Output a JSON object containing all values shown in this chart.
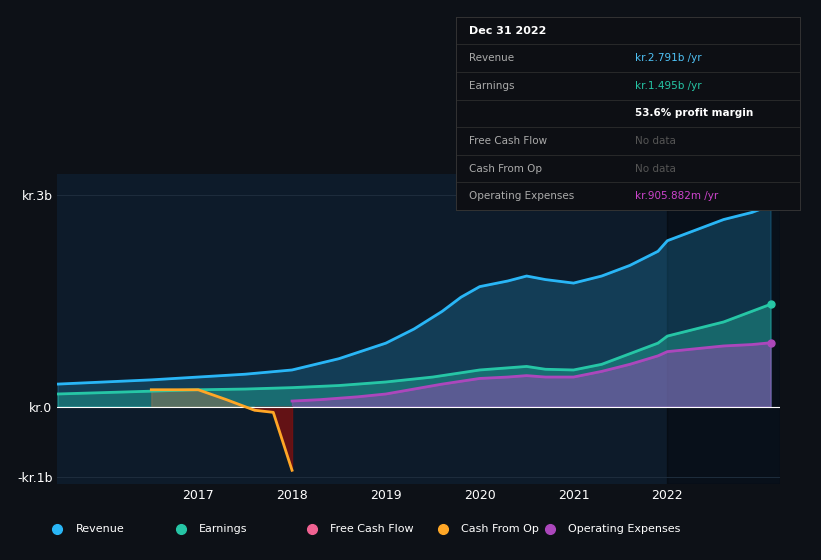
{
  "bg_color": "#0d1117",
  "plot_bg_color": "#0d1b2a",
  "grid_color": "#1e2d3d",
  "ylim": [
    -1100000000.0,
    3300000000.0
  ],
  "xlim": [
    2015.5,
    2023.2
  ],
  "yticks": [
    3000000000.0,
    0,
    -1000000000.0
  ],
  "ytick_labels": [
    "kr.3b",
    "kr.0",
    "-kr.1b"
  ],
  "xtick_labels": [
    "2017",
    "2018",
    "2019",
    "2020",
    "2021",
    "2022"
  ],
  "xtick_values": [
    2017,
    2018,
    2019,
    2020,
    2021,
    2022
  ],
  "revenue_color": "#29b6f6",
  "earnings_color": "#26c6a6",
  "opex_color": "#ab47bc",
  "cashfromop_color": "#ffa726",
  "freecashflow_color": "#f06292",
  "revenue": {
    "x": [
      2015.5,
      2016.0,
      2016.5,
      2017.0,
      2017.5,
      2018.0,
      2018.5,
      2019.0,
      2019.3,
      2019.6,
      2019.8,
      2020.0,
      2020.3,
      2020.5,
      2020.7,
      2021.0,
      2021.3,
      2021.6,
      2021.9,
      2022.0,
      2022.3,
      2022.6,
      2022.9,
      2023.1
    ],
    "y": [
      320000000.0,
      350000000.0,
      380000000.0,
      420000000.0,
      460000000.0,
      520000000.0,
      680000000.0,
      900000000.0,
      1100000000.0,
      1350000000.0,
      1550000000.0,
      1700000000.0,
      1780000000.0,
      1850000000.0,
      1800000000.0,
      1750000000.0,
      1850000000.0,
      2000000000.0,
      2200000000.0,
      2350000000.0,
      2500000000.0,
      2650000000.0,
      2750000000.0,
      2850000000.0
    ]
  },
  "earnings": {
    "x": [
      2015.5,
      2016.0,
      2016.5,
      2017.0,
      2017.5,
      2018.0,
      2018.5,
      2019.0,
      2019.5,
      2020.0,
      2020.3,
      2020.5,
      2020.7,
      2021.0,
      2021.3,
      2021.6,
      2021.9,
      2022.0,
      2022.3,
      2022.6,
      2022.9,
      2023.1
    ],
    "y": [
      180000000.0,
      200000000.0,
      220000000.0,
      240000000.0,
      250000000.0,
      270000000.0,
      300000000.0,
      350000000.0,
      420000000.0,
      520000000.0,
      550000000.0,
      570000000.0,
      530000000.0,
      520000000.0,
      600000000.0,
      750000000.0,
      900000000.0,
      1000000000.0,
      1100000000.0,
      1200000000.0,
      1350000000.0,
      1450000000.0
    ]
  },
  "opex": {
    "x": [
      2018.0,
      2018.3,
      2018.5,
      2018.7,
      2019.0,
      2019.3,
      2019.6,
      2020.0,
      2020.3,
      2020.5,
      2020.7,
      2021.0,
      2021.3,
      2021.6,
      2021.9,
      2022.0,
      2022.3,
      2022.6,
      2022.9,
      2023.1
    ],
    "y": [
      80000000.0,
      100000000.0,
      120000000.0,
      140000000.0,
      180000000.0,
      250000000.0,
      320000000.0,
      400000000.0,
      420000000.0,
      440000000.0,
      420000000.0,
      420000000.0,
      500000000.0,
      600000000.0,
      720000000.0,
      780000000.0,
      820000000.0,
      860000000.0,
      880000000.0,
      905000000.0
    ]
  },
  "cashfromop": {
    "x": [
      2016.5,
      2017.0,
      2017.3,
      2017.6,
      2017.8,
      2018.0
    ],
    "y": [
      240000000.0,
      240000000.0,
      100000000.0,
      -50000000.0,
      -80000000.0,
      -900000000.0
    ]
  },
  "shaded_region_start": 2022.0,
  "legend": [
    {
      "label": "Revenue",
      "color": "#29b6f6"
    },
    {
      "label": "Earnings",
      "color": "#26c6a6"
    },
    {
      "label": "Free Cash Flow",
      "color": "#f06292"
    },
    {
      "label": "Cash From Op",
      "color": "#ffa726"
    },
    {
      "label": "Operating Expenses",
      "color": "#ab47bc"
    }
  ],
  "info_box": {
    "title": "Dec 31 2022",
    "rows": [
      {
        "label": "Revenue",
        "value": "kr.2.791b /yr",
        "label_color": "#aaaaaa",
        "value_color": "#4fc3f7"
      },
      {
        "label": "Earnings",
        "value": "kr.1.495b /yr",
        "label_color": "#aaaaaa",
        "value_color": "#26c6a6"
      },
      {
        "label": "",
        "value": "53.6% profit margin",
        "label_color": "#aaaaaa",
        "value_color": "#ffffff"
      },
      {
        "label": "Free Cash Flow",
        "value": "No data",
        "label_color": "#aaaaaa",
        "value_color": "#555555"
      },
      {
        "label": "Cash From Op",
        "value": "No data",
        "label_color": "#aaaaaa",
        "value_color": "#555555"
      },
      {
        "label": "Operating Expenses",
        "value": "kr.905.882m /yr",
        "label_color": "#aaaaaa",
        "value_color": "#cc44cc"
      }
    ]
  }
}
